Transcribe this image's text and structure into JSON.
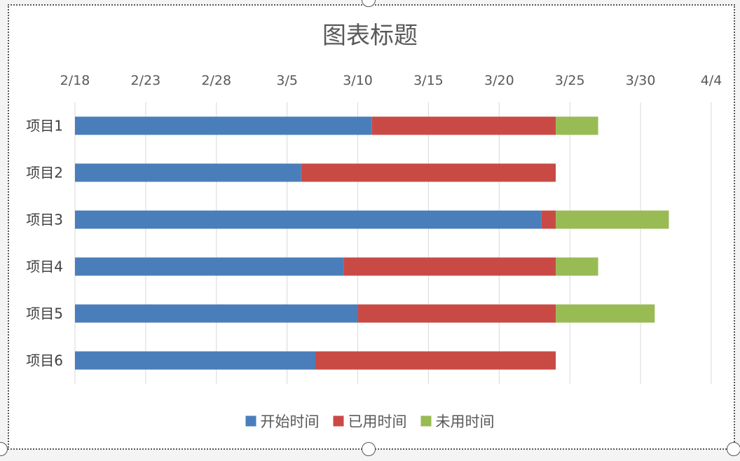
{
  "chart_data": {
    "type": "bar",
    "orientation": "horizontal",
    "stacked": true,
    "title": "图表标题",
    "x_axis_position": "top",
    "xlim": [
      "2/18",
      "4/4"
    ],
    "x_ticks": [
      "2/18",
      "2/23",
      "2/28",
      "3/5",
      "3/10",
      "3/15",
      "3/20",
      "3/25",
      "3/30",
      "4/4"
    ],
    "categories": [
      "项目1",
      "项目2",
      "项目3",
      "项目4",
      "项目5",
      "项目6"
    ],
    "series": [
      {
        "name": "开始时间",
        "color": "#4a7ebb",
        "end_dates": [
          "3/11",
          "3/6",
          "3/23",
          "3/9",
          "3/10",
          "3/7"
        ]
      },
      {
        "name": "已用时间",
        "color": "#c94a45",
        "end_dates": [
          "3/24",
          "3/24",
          "3/24",
          "3/24",
          "3/24",
          "3/24"
        ]
      },
      {
        "name": "未用时间",
        "color": "#98bb54",
        "end_dates": [
          "3/27",
          "3/24",
          "4/1",
          "3/27",
          "3/31",
          "3/24"
        ]
      }
    ],
    "grid": true,
    "legend": "bottom"
  }
}
